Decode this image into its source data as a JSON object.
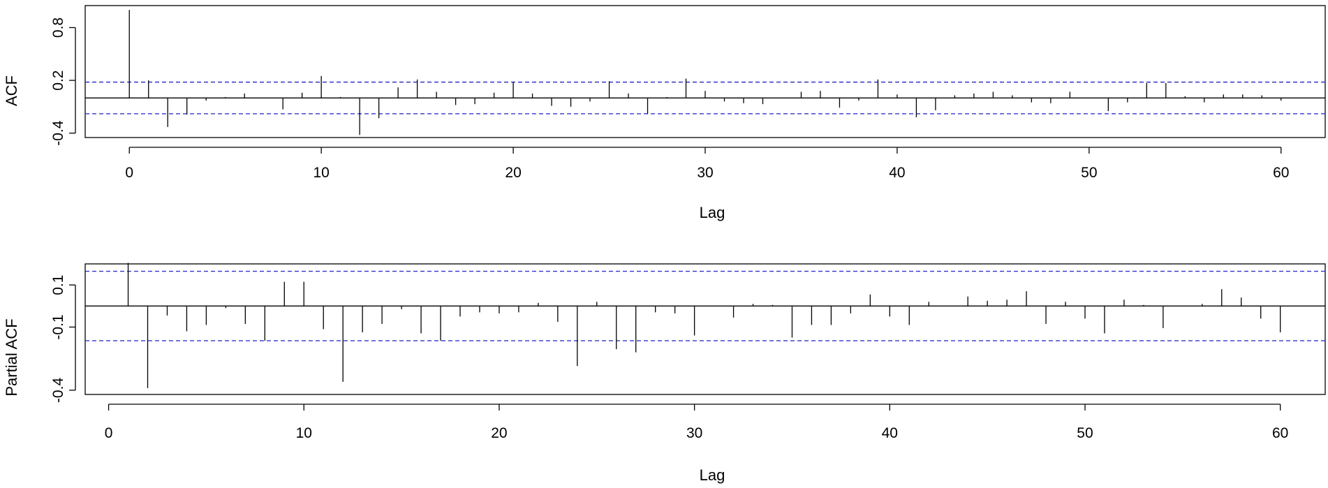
{
  "chart_data": [
    {
      "type": "bar",
      "title": "",
      "xlabel": "Lag",
      "ylabel": "ACF",
      "xlim": [
        -2.3,
        62.3
      ],
      "ylim": [
        -0.45,
        1.05
      ],
      "xticks": [
        0,
        10,
        20,
        30,
        40,
        50,
        60
      ],
      "xtick_labels": [
        "0",
        "10",
        "20",
        "30",
        "40",
        "50",
        "60"
      ],
      "yticks": [
        -0.4,
        0.2,
        0.8
      ],
      "ytick_labels": [
        "-0.4",
        "0.2",
        "0.8"
      ],
      "conf_limit": 0.18,
      "conf_color": "#3333cc",
      "bar_color": "#000000",
      "lags": [
        0,
        1,
        2,
        3,
        4,
        5,
        6,
        7,
        8,
        9,
        10,
        11,
        12,
        13,
        14,
        15,
        16,
        17,
        18,
        19,
        20,
        21,
        22,
        23,
        24,
        25,
        26,
        27,
        28,
        29,
        30,
        31,
        32,
        33,
        34,
        35,
        36,
        37,
        38,
        39,
        40,
        41,
        42,
        43,
        44,
        45,
        46,
        47,
        48,
        49,
        50,
        51,
        52,
        53,
        54,
        55,
        56,
        57,
        58,
        59,
        60
      ],
      "values": [
        1.0,
        0.2,
        -0.33,
        -0.19,
        -0.03,
        0.01,
        0.05,
        0.0,
        -0.13,
        0.06,
        0.25,
        0.01,
        -0.42,
        -0.23,
        0.12,
        0.21,
        0.07,
        -0.08,
        -0.07,
        0.06,
        0.18,
        0.05,
        -0.09,
        -0.1,
        -0.04,
        0.19,
        0.05,
        -0.18,
        0.01,
        0.22,
        0.08,
        -0.04,
        -0.06,
        -0.07,
        0.0,
        0.07,
        0.08,
        -0.11,
        -0.03,
        0.21,
        0.04,
        -0.22,
        -0.14,
        0.03,
        0.05,
        0.07,
        0.03,
        -0.05,
        -0.06,
        0.07,
        0.0,
        -0.15,
        -0.05,
        0.17,
        0.17,
        0.02,
        -0.05,
        0.04,
        0.04,
        0.03,
        -0.03
      ]
    },
    {
      "type": "bar",
      "title": "",
      "xlabel": "Lag",
      "ylabel": "Partial ACF",
      "xlim": [
        -1.2,
        62.3
      ],
      "ylim": [
        -0.42,
        0.2
      ],
      "xticks": [
        0,
        10,
        20,
        30,
        40,
        50,
        60
      ],
      "xtick_labels": [
        "0",
        "10",
        "20",
        "30",
        "40",
        "50",
        "60"
      ],
      "yticks": [
        -0.4,
        -0.1,
        0.1
      ],
      "ytick_labels": [
        "-0.4",
        "-0.1",
        "0.1"
      ],
      "conf_limit": 0.165,
      "conf_color": "#3333cc",
      "bar_color": "#000000",
      "lags": [
        1,
        2,
        3,
        4,
        5,
        6,
        7,
        8,
        9,
        10,
        11,
        12,
        13,
        14,
        15,
        16,
        17,
        18,
        19,
        20,
        21,
        22,
        23,
        24,
        25,
        26,
        27,
        28,
        29,
        30,
        31,
        32,
        33,
        34,
        35,
        36,
        37,
        38,
        39,
        40,
        41,
        42,
        43,
        44,
        45,
        46,
        47,
        48,
        49,
        50,
        51,
        52,
        53,
        54,
        55,
        56,
        57,
        58,
        59,
        60
      ],
      "values": [
        0.205,
        -0.39,
        -0.045,
        -0.12,
        -0.09,
        -0.01,
        -0.085,
        -0.165,
        0.115,
        0.115,
        -0.11,
        -0.36,
        -0.125,
        -0.085,
        -0.015,
        -0.13,
        -0.165,
        -0.05,
        -0.03,
        -0.035,
        -0.03,
        0.015,
        -0.075,
        -0.285,
        0.02,
        -0.205,
        -0.22,
        -0.03,
        -0.035,
        -0.14,
        0.0,
        -0.055,
        0.01,
        0.005,
        -0.15,
        -0.09,
        -0.09,
        -0.035,
        0.055,
        -0.05,
        -0.09,
        0.02,
        0.0,
        0.045,
        0.025,
        0.03,
        0.07,
        -0.085,
        0.02,
        -0.06,
        -0.13,
        0.03,
        0.005,
        -0.105,
        0.0,
        0.01,
        0.08,
        0.04,
        -0.06,
        -0.125
      ]
    }
  ]
}
